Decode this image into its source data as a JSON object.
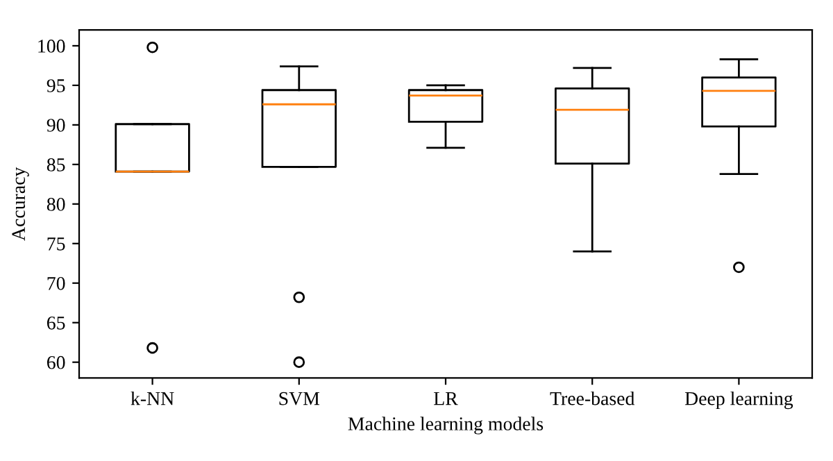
{
  "chart_data": {
    "type": "box",
    "xlabel": "Machine learning models",
    "ylabel": "Accuracy",
    "categories": [
      "k-NN",
      "SVM",
      "LR",
      "Tree-based",
      "Deep learning"
    ],
    "boxes": [
      {
        "low": 84.1,
        "q1": 84.1,
        "median": 84.1,
        "q3": 90.1,
        "high": 90.1,
        "outliers": [
          99.8,
          61.8
        ]
      },
      {
        "low": 84.7,
        "q1": 84.7,
        "median": 92.6,
        "q3": 94.4,
        "high": 97.4,
        "outliers": [
          68.2,
          60.0
        ]
      },
      {
        "low": 87.1,
        "q1": 90.4,
        "median": 93.7,
        "q3": 94.4,
        "high": 95.0
      },
      {
        "low": 74.0,
        "q1": 85.1,
        "median": 91.9,
        "q3": 94.6,
        "high": 97.2
      },
      {
        "low": 83.8,
        "q1": 89.8,
        "median": 94.3,
        "q3": 96.0,
        "high": 98.3,
        "outliers": [
          72.0
        ]
      }
    ],
    "ylim": [
      58,
      102
    ],
    "yticks": [
      60,
      65,
      70,
      75,
      80,
      85,
      90,
      95,
      100
    ],
    "grid": false
  }
}
